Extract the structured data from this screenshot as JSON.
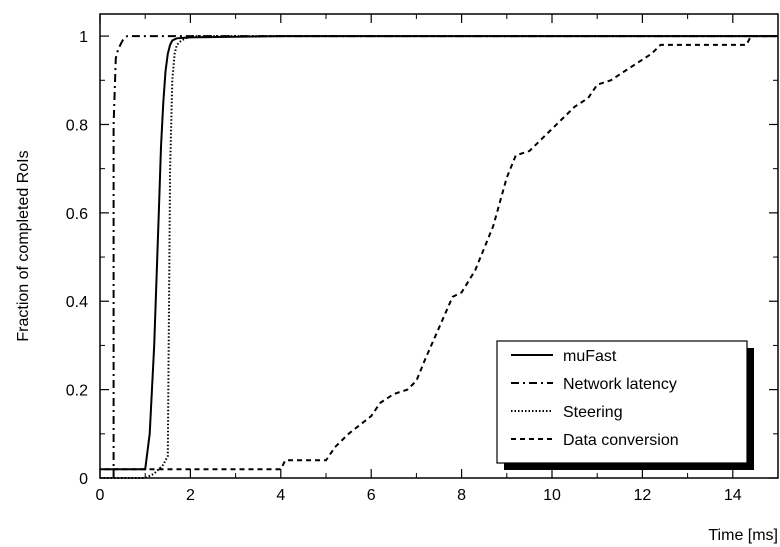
{
  "chart_data": {
    "type": "line",
    "title": "",
    "xlabel": "Time [ms]",
    "ylabel": "Fraction of completed RoIs",
    "xlim": [
      0,
      15
    ],
    "ylim": [
      0,
      1.05
    ],
    "xticks": [
      0,
      2,
      4,
      6,
      8,
      10,
      12,
      14
    ],
    "yticks": [
      0,
      0.2,
      0.4,
      0.6,
      0.8,
      1
    ],
    "xtick_labels": [
      "0",
      "2",
      "4",
      "6",
      "8",
      "10",
      "12",
      "14"
    ],
    "ytick_labels": [
      "0",
      "0.2",
      "0.4",
      "0.6",
      "0.8",
      "1"
    ],
    "grid": false,
    "legend_position": "bottom-right",
    "series": [
      {
        "name": "muFast",
        "style": "solid",
        "x": [
          0,
          1.0,
          1.1,
          1.2,
          1.25,
          1.3,
          1.35,
          1.4,
          1.45,
          1.5,
          1.55,
          1.6,
          1.7,
          2.0,
          4.0,
          15
        ],
        "y": [
          0.02,
          0.02,
          0.1,
          0.3,
          0.45,
          0.6,
          0.75,
          0.85,
          0.92,
          0.96,
          0.98,
          0.99,
          0.995,
          0.997,
          1.0,
          1.0
        ]
      },
      {
        "name": "Network latency",
        "style": "dashdot",
        "x": [
          0.3,
          0.3,
          0.35,
          0.4,
          0.45,
          0.5,
          0.6,
          1.0,
          15
        ],
        "y": [
          0.0,
          0.8,
          0.95,
          0.97,
          0.98,
          0.99,
          1.0,
          1.0,
          1.0
        ]
      },
      {
        "name": "Steering",
        "style": "dotted",
        "x": [
          0,
          1.0,
          1.2,
          1.3,
          1.4,
          1.5,
          1.52,
          1.55,
          1.6,
          1.65,
          1.7,
          1.8,
          2.0,
          15
        ],
        "y": [
          0.0,
          0.0,
          0.01,
          0.02,
          0.03,
          0.05,
          0.3,
          0.7,
          0.9,
          0.96,
          0.98,
          0.99,
          1.0,
          1.0
        ]
      },
      {
        "name": "Data conversion",
        "style": "dashed",
        "x": [
          0.1,
          4.0,
          4.1,
          4.2,
          5.0,
          5.2,
          5.5,
          6.0,
          6.2,
          6.5,
          6.8,
          7.0,
          7.2,
          7.5,
          7.8,
          8.0,
          8.3,
          8.5,
          8.7,
          9.0,
          9.2,
          9.5,
          9.8,
          10.0,
          10.3,
          10.5,
          10.8,
          11.0,
          11.3,
          11.6,
          11.9,
          12.2,
          12.4,
          12.6,
          13.0,
          14.3,
          14.4,
          15.0
        ],
        "y": [
          0.02,
          0.02,
          0.04,
          0.04,
          0.04,
          0.07,
          0.1,
          0.14,
          0.17,
          0.19,
          0.2,
          0.22,
          0.27,
          0.34,
          0.41,
          0.42,
          0.47,
          0.52,
          0.57,
          0.68,
          0.73,
          0.74,
          0.77,
          0.79,
          0.82,
          0.84,
          0.86,
          0.89,
          0.9,
          0.92,
          0.94,
          0.96,
          0.98,
          0.98,
          0.98,
          0.98,
          1.0,
          1.0
        ]
      }
    ]
  }
}
